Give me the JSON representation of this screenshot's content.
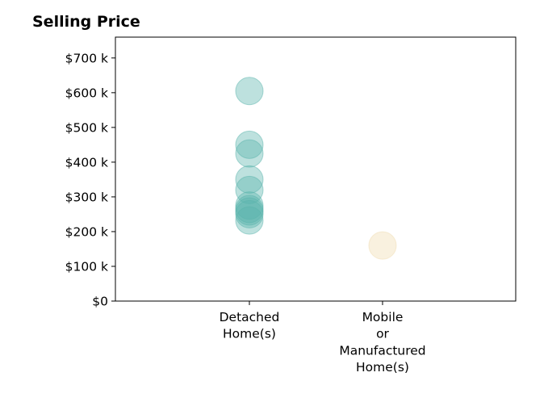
{
  "chart_data": {
    "type": "scatter",
    "title": "Selling Price",
    "xlabel": "",
    "ylabel": "",
    "categories": [
      [
        "Detached",
        "Home(s)"
      ],
      [
        "Mobile",
        "or",
        "Manufactured",
        "Home(s)"
      ]
    ],
    "yticks": [
      "$0",
      "$100 k",
      "$200 k",
      "$300 k",
      "$400 k",
      "$500 k",
      "$600 k",
      "$700 k"
    ],
    "ylim": [
      0,
      760000
    ],
    "grid": false,
    "legend": "none",
    "series": [
      {
        "category_index": 0,
        "color": "#5ab4ac",
        "values": [
          605000,
          450000,
          425000,
          350000,
          320000,
          275000,
          265000,
          258000,
          250000,
          232000
        ]
      },
      {
        "category_index": 1,
        "color": "#f0dcb0",
        "values": [
          160000
        ]
      }
    ]
  }
}
